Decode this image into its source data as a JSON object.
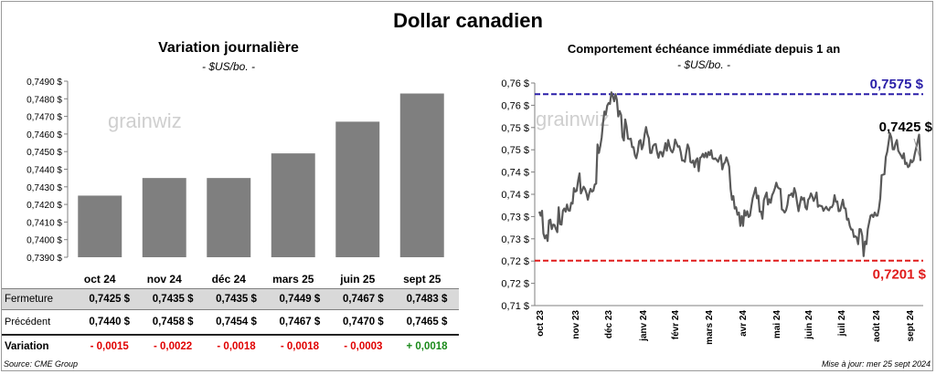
{
  "main_title": "Dollar canadien",
  "left_panel": {
    "title": "Variation  journalière",
    "subtitle": "- $US/bo. -"
  },
  "right_panel": {
    "title": "Comportement échéance immédiate depuis 1 an",
    "subtitle": "- $US/bo. -"
  },
  "watermark": "grainwiz",
  "table": {
    "row_labels": {
      "close": "Fermeture",
      "prev": "Précédent",
      "var": "Variation"
    },
    "columns": [
      {
        "contract": "oct 24",
        "close": "0,7425  $",
        "prev": "0,7440  $",
        "var": "- 0,0015"
      },
      {
        "contract": "nov 24",
        "close": "0,7435  $",
        "prev": "0,7458  $",
        "var": "- 0,0022"
      },
      {
        "contract": "déc 24",
        "close": "0,7435  $",
        "prev": "0,7454  $",
        "var": "- 0,0018"
      },
      {
        "contract": "mars 25",
        "close": "0,7449  $",
        "prev": "0,7467  $",
        "var": "- 0,0018"
      },
      {
        "contract": "juin 25",
        "close": "0,7467  $",
        "prev": "0,7470  $",
        "var": "- 0,0003"
      },
      {
        "contract": "sept 25",
        "close": "0,7483  $",
        "prev": "0,7465  $",
        "var": "+ 0,0018"
      }
    ]
  },
  "colors": {
    "bar": "#7f7f7f",
    "line": "#595959",
    "high": "#2a1fa8",
    "low": "#e01b1b",
    "negative": "#e00000",
    "positive": "#1a8a1a"
  },
  "footer": {
    "source": "Source: CME Group",
    "updated": "Mise à jour: mer 25 sept 2024"
  },
  "chart_data": [
    {
      "type": "bar",
      "categories": [
        "oct 24",
        "nov 24",
        "déc 24",
        "mars 25",
        "juin 25",
        "sept 25"
      ],
      "values": [
        0.7425,
        0.7435,
        0.7435,
        0.7449,
        0.7467,
        0.7483
      ],
      "ylim": [
        0.739,
        0.749
      ],
      "yticks": [
        0.739,
        0.74,
        0.741,
        0.742,
        0.743,
        0.744,
        0.745,
        0.746,
        0.747,
        0.748,
        0.749
      ],
      "ytick_labels": [
        "0,7390 $",
        "0,7400 $",
        "0,7410 $",
        "0,7420 $",
        "0,7430 $",
        "0,7440 $",
        "0,7450 $",
        "0,7460 $",
        "0,7470 $",
        "0,7480 $",
        "0,7490 $"
      ],
      "grid": false,
      "legend": "none"
    },
    {
      "type": "line",
      "x_labels": [
        "oct 23",
        "nov 23",
        "déc 23",
        "janv 24",
        "févr 24",
        "mars 24",
        "avr 24",
        "mai 24",
        "juin 24",
        "juil 24",
        "août 24",
        "sept 24"
      ],
      "ylim": [
        0.71,
        0.76
      ],
      "ytick_labels": [
        "0,76 $",
        "0,76 $",
        "0,75 $",
        "0,75 $",
        "0,74 $",
        "0,74 $",
        "0,73 $",
        "0,73 $",
        "0,72 $",
        "0,72 $",
        "0,71 $"
      ],
      "series": [
        {
          "values": [
            0.7311,
            0.7302,
            0.7313,
            0.7262,
            0.7251,
            0.7258,
            0.7245,
            0.7291,
            0.7293,
            0.7272,
            0.7282,
            0.7281,
            0.7272,
            0.7265,
            0.7321,
            0.7283,
            0.7282,
            0.7313,
            0.7318,
            0.7311,
            0.7327,
            0.7314,
            0.7313,
            0.7331,
            0.7329,
            0.7364,
            0.7356,
            0.7358,
            0.7381,
            0.7397,
            0.7352,
            0.7359,
            0.7367,
            0.7362,
            0.7352,
            0.7338,
            0.7352,
            0.7362,
            0.7356,
            0.7358,
            0.7372,
            0.7374,
            0.7462,
            0.7443,
            0.7458,
            0.7477,
            0.7512,
            0.7536,
            0.7529,
            0.7549,
            0.7555,
            0.7553,
            0.7579,
            0.7571,
            0.7559,
            0.7575,
            0.7562,
            0.7525,
            0.7537,
            0.7528,
            0.7479,
            0.7471,
            0.7518,
            0.7502,
            0.7475,
            0.7474,
            0.7475,
            0.7456,
            0.7456,
            0.7438,
            0.7431,
            0.7446,
            0.7469,
            0.7472,
            0.7451,
            0.7461,
            0.7484,
            0.7501,
            0.7485,
            0.7476,
            0.7443,
            0.7443,
            0.7458,
            0.7462,
            0.7463,
            0.7444,
            0.7432,
            0.7445,
            0.7445,
            0.7435,
            0.7449,
            0.7465,
            0.7448,
            0.7472,
            0.7458,
            0.7448,
            0.7444,
            0.7452,
            0.7473,
            0.7465,
            0.7457,
            0.7458,
            0.7445,
            0.7426,
            0.7426,
            0.7423,
            0.7443,
            0.7462,
            0.7453,
            0.7423,
            0.7421,
            0.7426,
            0.7411,
            0.7426,
            0.7431,
            0.7402,
            0.7432,
            0.7434,
            0.7441,
            0.7433,
            0.7443,
            0.7433,
            0.7445,
            0.7438,
            0.7449,
            0.7431,
            0.7429,
            0.7431,
            0.7427,
            0.7423,
            0.7432,
            0.7438,
            0.7406,
            0.7418,
            0.7422,
            0.7433,
            0.7424,
            0.7412,
            0.7362,
            0.7338,
            0.7346,
            0.7318,
            0.7321,
            0.7304,
            0.7309,
            0.7279,
            0.7301,
            0.7279,
            0.7314,
            0.7302,
            0.7312,
            0.7299,
            0.7302,
            0.7323,
            0.7342,
            0.7352,
            0.7365,
            0.7341,
            0.7347,
            0.7311,
            0.7311,
            0.7295,
            0.7337,
            0.7346,
            0.7354,
            0.7327,
            0.7339,
            0.7331,
            0.7348,
            0.7355,
            0.7364,
            0.7376,
            0.7366,
            0.7363,
            0.7362,
            0.7316,
            0.7314,
            0.7309,
            0.7314,
            0.7326,
            0.7348,
            0.7348,
            0.7352,
            0.7344,
            0.7364,
            0.7353,
            0.7332,
            0.7312,
            0.7328,
            0.7344,
            0.7338,
            0.7342,
            0.7321,
            0.7316,
            0.7338,
            0.7342,
            0.7352,
            0.7345,
            0.7335,
            0.7343,
            0.7354,
            0.7322,
            0.7325,
            0.7324,
            0.7323,
            0.7313,
            0.7318,
            0.7322,
            0.7316,
            0.7314,
            0.7321,
            0.7321,
            0.7327,
            0.7348,
            0.7333,
            0.7334,
            0.7312,
            0.7313,
            0.7325,
            0.7338,
            0.7319,
            0.7318,
            0.7293,
            0.7295,
            0.7279,
            0.7271,
            0.7271,
            0.7254,
            0.7256,
            0.7253,
            0.7238,
            0.7272,
            0.7271,
            0.7257,
            0.7211,
            0.7244,
            0.7238,
            0.7272,
            0.7287,
            0.7302,
            0.7304,
            0.7299,
            0.7309,
            0.7302,
            0.7302,
            0.7317,
            0.7341,
            0.7393,
            0.7394,
            0.7395,
            0.7434,
            0.7445,
            0.7466,
            0.7487,
            0.7477,
            0.7451,
            0.7451,
            0.7464,
            0.7472,
            0.7448,
            0.7442,
            0.7437,
            0.7431,
            0.7442,
            0.7418,
            0.7421,
            0.7411,
            0.7414,
            0.7427,
            0.7422,
            0.7426,
            0.7442,
            0.7456,
            0.7469,
            0.7484,
            0.7425
          ]
        }
      ],
      "annotations": [
        {
          "label": "0,7575 $",
          "value": 0.7575,
          "kind": "high"
        },
        {
          "label": "0,7201 $",
          "value": 0.7201,
          "kind": "low"
        },
        {
          "label": "0,7425 $",
          "value": 0.7425,
          "kind": "last"
        }
      ],
      "grid": false,
      "legend": "none"
    }
  ]
}
